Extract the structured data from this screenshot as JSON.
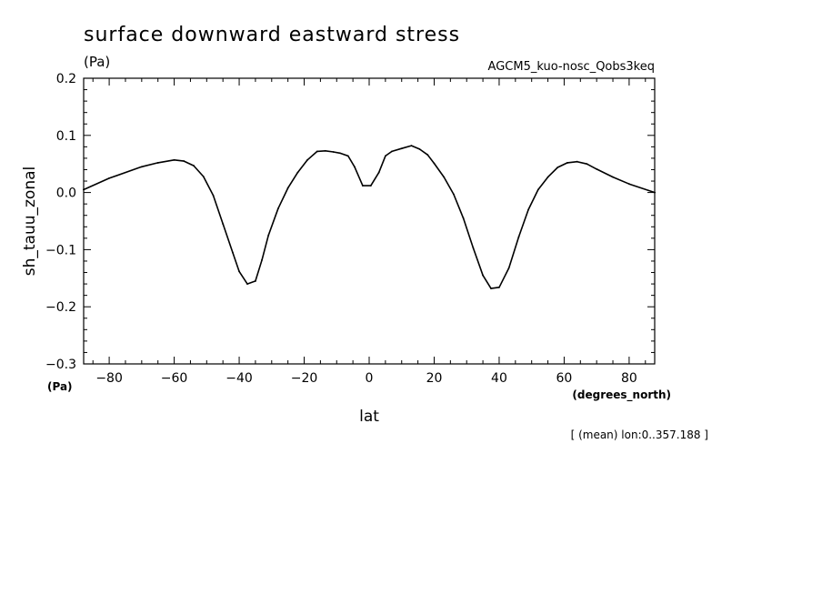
{
  "chart_data": {
    "type": "line",
    "title": "surface downward eastward stress",
    "title_units": "(Pa)",
    "run_label": "AGCM5_kuo-nosc_Qobs3keq",
    "ylabel": "sh_tauu_zonal",
    "y_units": "(Pa)",
    "xlabel": "lat",
    "x_units": "(degrees_north)",
    "footnote": "[ (mean) lon:0..357.188 ]",
    "xlim": [
      -87.86,
      87.86
    ],
    "ylim": [
      -0.3,
      0.2
    ],
    "x_ticks": [
      -80,
      -60,
      -40,
      -20,
      0,
      20,
      40,
      60,
      80
    ],
    "x_tick_labels": [
      "−80",
      "−60",
      "−40",
      "−20",
      "0",
      "20",
      "40",
      "60",
      "80"
    ],
    "y_ticks": [
      -0.3,
      -0.2,
      -0.1,
      0.0,
      0.1,
      0.2
    ],
    "y_tick_labels": [
      "−0.3",
      "−0.2",
      "−0.1",
      "0.0",
      "0.1",
      "0.2"
    ],
    "grid": false,
    "x": [
      -87.9,
      -80,
      -70,
      -65,
      -60,
      -57,
      -54,
      -51,
      -48,
      -45,
      -42,
      -40,
      -37.5,
      -35,
      -33,
      -31,
      -28,
      -25,
      -22,
      -19,
      -16,
      -13.5,
      -11,
      -9,
      -6.5,
      -4.5,
      -2,
      0.5,
      3,
      5,
      7,
      10,
      13,
      15.5,
      18,
      20,
      23,
      26,
      29,
      32,
      35,
      37.5,
      40,
      43,
      46,
      49,
      52,
      55,
      58,
      61,
      64,
      67,
      70,
      75,
      80,
      87.9
    ],
    "y": [
      0.005,
      0.025,
      0.045,
      0.052,
      0.057,
      0.055,
      0.047,
      0.028,
      -0.005,
      -0.055,
      -0.105,
      -0.138,
      -0.16,
      -0.155,
      -0.118,
      -0.075,
      -0.028,
      0.008,
      0.035,
      0.057,
      0.072,
      0.073,
      0.071,
      0.069,
      0.064,
      0.045,
      0.012,
      0.012,
      0.035,
      0.064,
      0.072,
      0.077,
      0.082,
      0.076,
      0.066,
      0.051,
      0.027,
      -0.003,
      -0.045,
      -0.097,
      -0.145,
      -0.168,
      -0.166,
      -0.132,
      -0.078,
      -0.03,
      0.005,
      0.027,
      0.044,
      0.052,
      0.054,
      0.05,
      0.041,
      0.027,
      0.015,
      0.0
    ]
  }
}
